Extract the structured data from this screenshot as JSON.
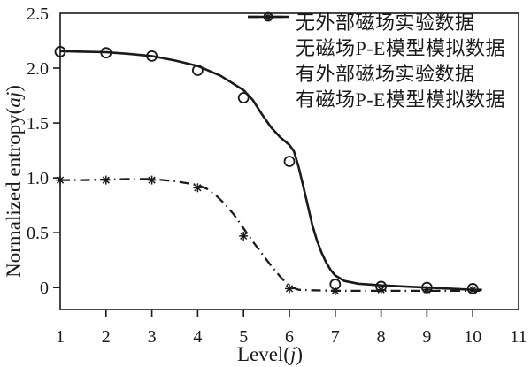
{
  "figure": {
    "background": "#ffffff",
    "ink_color": "#1a1a1a"
  },
  "chart_data": {
    "type": "line",
    "title": "",
    "xlabel": {
      "prefix": "Level(",
      "var": "j",
      "suffix": ")"
    },
    "ylabel": {
      "prefix": "Normalized entropy(",
      "var": "aj",
      "suffix": ")"
    },
    "xlim": [
      1,
      11
    ],
    "ylim": [
      -0.2,
      2.5
    ],
    "grid": false,
    "legend_position": "upper-right",
    "x_ticks": {
      "values": [
        1,
        2,
        3,
        4,
        5,
        6,
        7,
        8,
        9,
        10,
        11
      ],
      "labels": [
        "1",
        "2",
        "3",
        "4",
        "5",
        "6",
        "7",
        "8",
        "9",
        "10",
        "11"
      ]
    },
    "y_ticks": {
      "values": [
        0,
        0.5,
        1.0,
        1.5,
        2.0,
        2.5
      ],
      "labels": [
        "0",
        "0.5",
        "1.0",
        "1.5",
        "2.0",
        "2.5"
      ]
    },
    "series": [
      {
        "name": "exp-no-field",
        "label": "无外部磁场实验数据",
        "style": "scatter",
        "marker": "circle",
        "x": [
          1,
          2,
          3,
          4,
          5,
          6,
          7,
          8,
          9,
          10
        ],
        "y": [
          2.15,
          2.14,
          2.11,
          1.98,
          1.73,
          1.15,
          0.03,
          0.01,
          0.0,
          -0.01
        ]
      },
      {
        "name": "model-no-field",
        "label": "无磁场P-E模型模拟数据",
        "style": "line",
        "line": "solid",
        "points": [
          [
            1,
            2.155
          ],
          [
            1.5,
            2.15
          ],
          [
            2,
            2.145
          ],
          [
            2.5,
            2.13
          ],
          [
            3,
            2.11
          ],
          [
            3.5,
            2.07
          ],
          [
            4,
            2.02
          ],
          [
            4.5,
            1.93
          ],
          [
            5,
            1.8
          ],
          [
            5.2,
            1.71
          ],
          [
            5.4,
            1.58
          ],
          [
            5.6,
            1.46
          ],
          [
            5.8,
            1.37
          ],
          [
            6.0,
            1.3
          ],
          [
            6.1,
            1.24
          ],
          [
            6.2,
            1.1
          ],
          [
            6.3,
            0.93
          ],
          [
            6.4,
            0.75
          ],
          [
            6.5,
            0.57
          ],
          [
            6.6,
            0.43
          ],
          [
            6.7,
            0.32
          ],
          [
            6.8,
            0.23
          ],
          [
            6.9,
            0.16
          ],
          [
            7.0,
            0.11
          ],
          [
            7.2,
            0.06
          ],
          [
            7.5,
            0.035
          ],
          [
            8,
            0.02
          ],
          [
            8.5,
            0.01
          ],
          [
            9,
            0.0
          ],
          [
            9.5,
            -0.01
          ],
          [
            10,
            -0.02
          ],
          [
            10.2,
            -0.02
          ]
        ]
      },
      {
        "name": "exp-field",
        "label": "有外部磁场实验数据",
        "style": "scatter",
        "marker": "asterisk",
        "x": [
          1,
          2,
          3,
          4,
          5,
          6,
          7,
          8,
          9,
          10
        ],
        "y": [
          0.98,
          0.98,
          0.98,
          0.91,
          0.47,
          -0.01,
          -0.03,
          -0.02,
          -0.02,
          -0.02
        ]
      },
      {
        "name": "model-field",
        "label": "有磁场P-E模型模拟数据",
        "style": "line",
        "line": "dashdot",
        "points": [
          [
            1,
            0.98
          ],
          [
            1.5,
            0.98
          ],
          [
            2,
            0.985
          ],
          [
            2.5,
            0.99
          ],
          [
            3,
            0.99
          ],
          [
            3.5,
            0.97
          ],
          [
            4,
            0.935
          ],
          [
            4.2,
            0.9
          ],
          [
            4.4,
            0.84
          ],
          [
            4.6,
            0.76
          ],
          [
            4.8,
            0.66
          ],
          [
            5.0,
            0.54
          ],
          [
            5.2,
            0.42
          ],
          [
            5.4,
            0.31
          ],
          [
            5.6,
            0.2
          ],
          [
            5.8,
            0.1
          ],
          [
            6.0,
            0.01
          ],
          [
            6.2,
            -0.02
          ],
          [
            6.5,
            -0.025
          ],
          [
            7,
            -0.03
          ],
          [
            8,
            -0.03
          ],
          [
            9,
            -0.03
          ],
          [
            10,
            -0.03
          ],
          [
            10.2,
            -0.03
          ]
        ]
      }
    ]
  }
}
